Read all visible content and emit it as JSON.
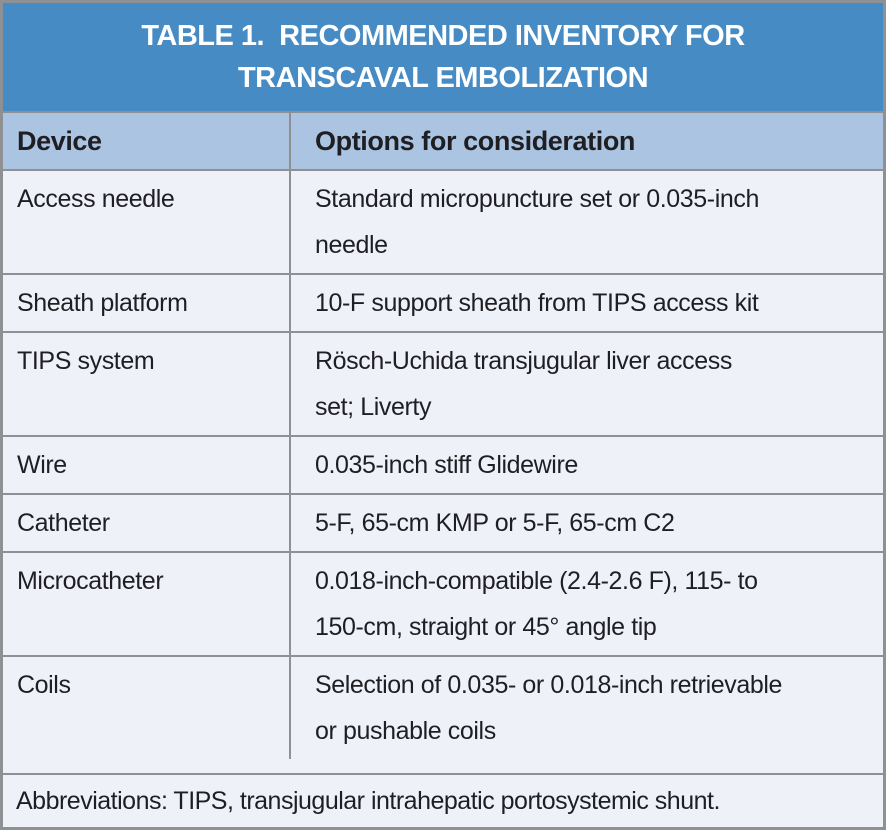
{
  "table": {
    "title_line1": "TABLE 1.  RECOMMENDED INVENTORY FOR",
    "title_line2": "TRANSCAVAL EMBOLIZATION",
    "columns": {
      "device": "Device",
      "options": "Options for consideration"
    },
    "rows": [
      {
        "device": "Access needle",
        "options": "Standard micropuncture set or 0.035-inch\nneedle"
      },
      {
        "device": "Sheath platform",
        "options": "10-F support sheath from TIPS access kit"
      },
      {
        "device": "TIPS system",
        "options": "Rösch-Uchida transjugular liver access\nset; Liverty"
      },
      {
        "device": "Wire",
        "options": "0.035-inch stiff Glidewire"
      },
      {
        "device": "Catheter",
        "options": "5-F, 65-cm KMP or 5-F, 65-cm C2"
      },
      {
        "device": "Microcatheter",
        "options": "0.018-inch-compatible (2.4-2.6 F), 115- to\n150-cm, straight or 45° angle tip"
      },
      {
        "device": "Coils",
        "options": "Selection of 0.035- or 0.018-inch retrievable\nor pushable coils"
      }
    ],
    "footnote": "Abbreviations: TIPS, transjugular intrahepatic portosystemic shunt.",
    "colors": {
      "title_bg": "#478bc4",
      "header_bg": "#aac4e2",
      "row_bg": "#eef1f8",
      "border": "#8f9094",
      "text": "#1f1f23",
      "title_text": "#ffffff"
    }
  }
}
